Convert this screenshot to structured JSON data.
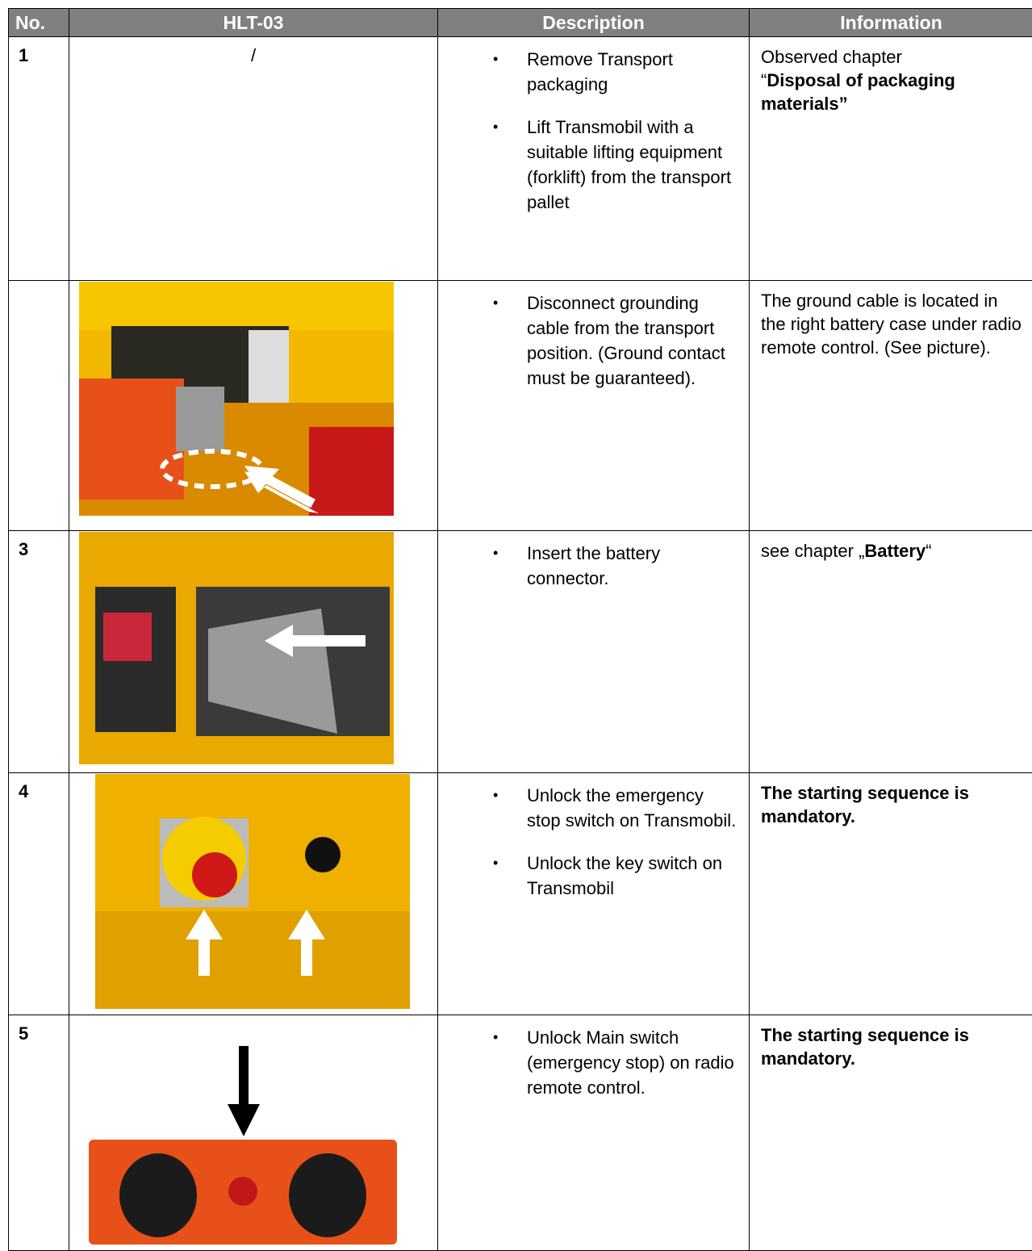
{
  "table": {
    "header": [
      "No.",
      "HLT-03",
      "Description",
      "Information"
    ],
    "rows": [
      {
        "no": "1",
        "image_text": "/",
        "description": [
          "Remove Transport packaging",
          "Lift Transmobil with a suitable lifting equipment (forklift) from the transport pallet"
        ],
        "info": [
          [
            {
              "text": "Observed chapter",
              "bold": false
            }
          ],
          [
            {
              "text": "“",
              "bold": false
            },
            {
              "text": "Disposal of packaging materials”",
              "bold": true
            }
          ]
        ]
      },
      {
        "description": [
          "Disconnect grounding cable from the transport position. (Ground contact must be guaranteed)."
        ],
        "info": [
          [
            {
              "text": "The ground cable is located in the right battery case under radio remote control. (See picture).",
              "bold": false
            }
          ]
        ]
      },
      {
        "no": "3",
        "description": [
          "Insert the battery connector."
        ],
        "info": [
          [
            {
              "text": "see chapter „",
              "bold": false
            },
            {
              "text": "Battery",
              "bold": true
            },
            {
              "text": "“",
              "bold": false
            }
          ]
        ]
      },
      {
        "no": "4",
        "description": [
          "Unlock the emergency stop switch on Transmobil.",
          "Unlock the key switch on Transmobil"
        ],
        "info": [
          [
            {
              "text": "The starting sequence is mandatory.",
              "bold": true
            }
          ]
        ]
      },
      {
        "no": "5",
        "description": [
          "Unlock Main switch (emergency stop) on radio remote control."
        ],
        "info": [
          [
            {
              "text": "The starting sequence is mandatory.",
              "bold": true
            }
          ]
        ]
      }
    ]
  }
}
